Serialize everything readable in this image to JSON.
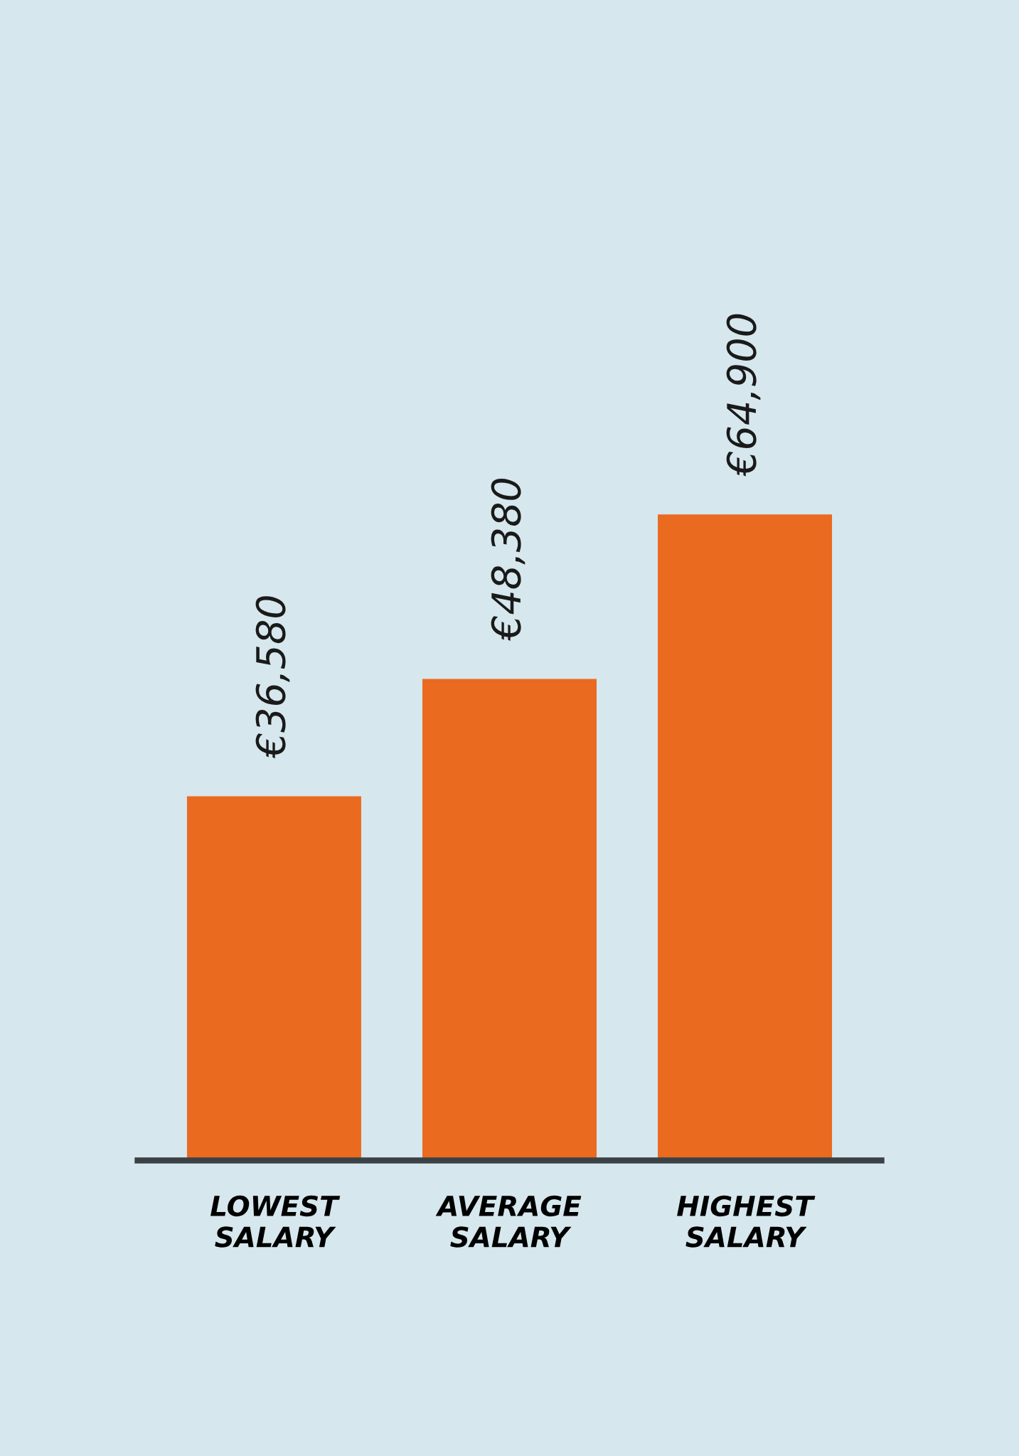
{
  "chart_data": {
    "type": "bar",
    "categories": [
      "LOWEST\nSALARY",
      "AVERAGE\nSALARY",
      "HIGHEST\nSALARY"
    ],
    "values": [
      36580,
      48380,
      64900
    ],
    "value_labels": [
      "€36,580",
      "€48,380",
      "€64,900"
    ],
    "color": "#ea6a20"
  }
}
